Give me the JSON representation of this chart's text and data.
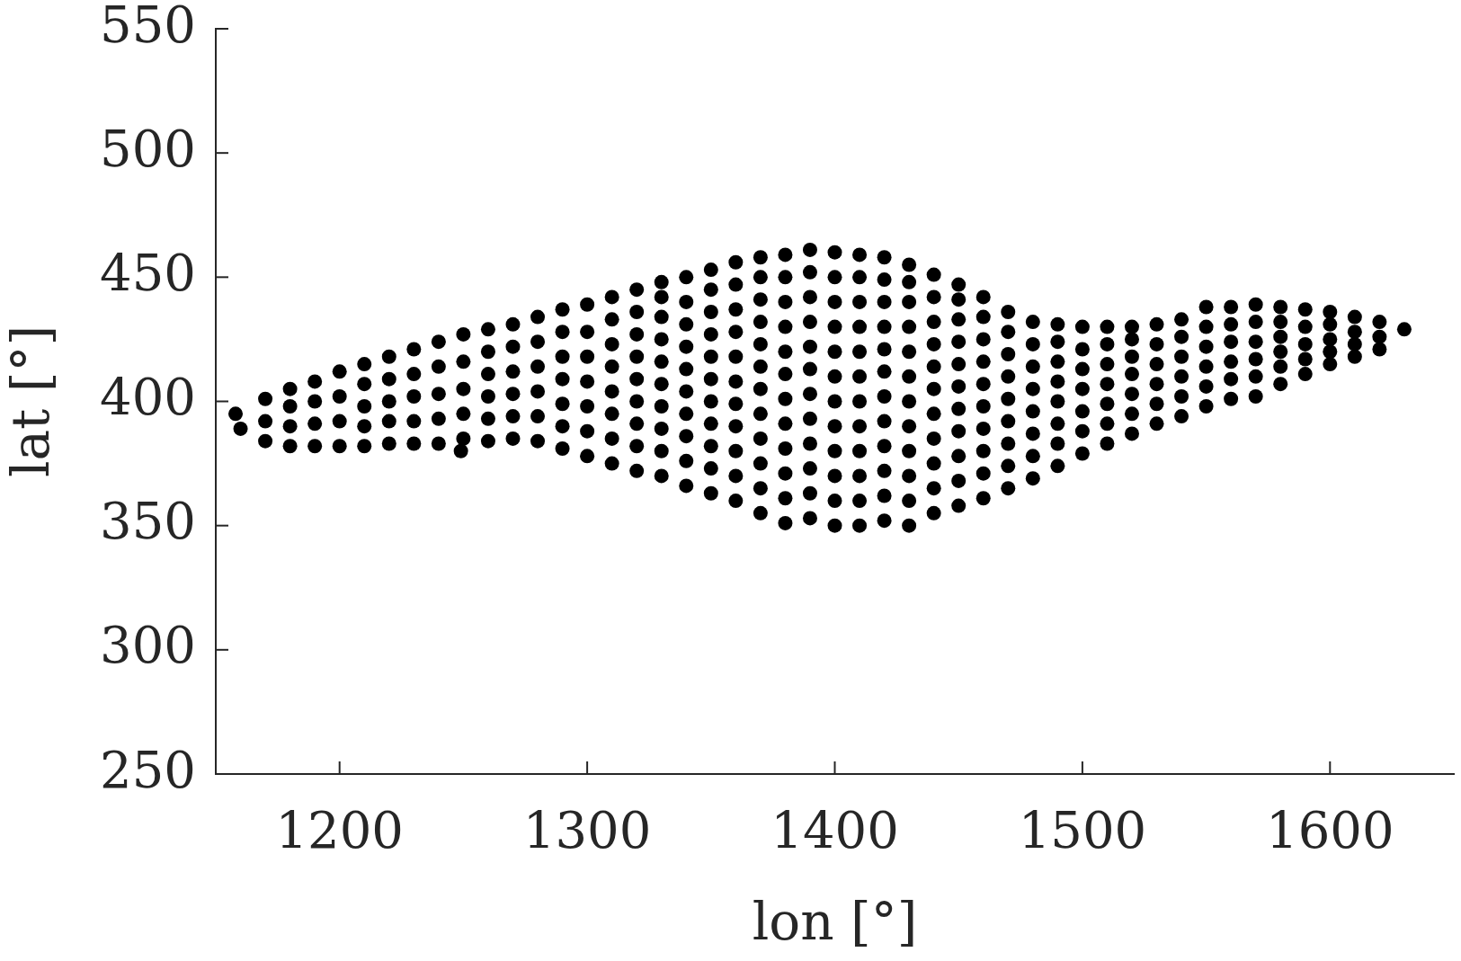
{
  "chart_data": {
    "type": "scatter",
    "xlabel": "lon [°]",
    "ylabel": "lat [°]",
    "xlim": [
      1150,
      1650
    ],
    "ylim": [
      250,
      550
    ],
    "xticks": [
      1200,
      1300,
      1400,
      1500,
      1600
    ],
    "yticks": [
      250,
      300,
      350,
      400,
      450,
      500,
      550
    ],
    "marker": "circle",
    "color": "#000000",
    "x": [
      1158,
      1160,
      1170,
      1170,
      1170,
      1180,
      1180,
      1180,
      1180,
      1190,
      1190,
      1190,
      1190,
      1200,
      1200,
      1200,
      1200,
      1210,
      1210,
      1210,
      1210,
      1210,
      1220,
      1220,
      1220,
      1220,
      1220,
      1230,
      1230,
      1230,
      1230,
      1230,
      1240,
      1240,
      1240,
      1240,
      1240,
      1249,
      1250,
      1250,
      1250,
      1250,
      1250,
      1260,
      1260,
      1260,
      1260,
      1260,
      1260,
      1270,
      1270,
      1270,
      1270,
      1270,
      1270,
      1280,
      1280,
      1280,
      1280,
      1280,
      1280,
      1290,
      1290,
      1290,
      1290,
      1290,
      1290,
      1290,
      1300,
      1300,
      1300,
      1300,
      1300,
      1300,
      1300,
      1310,
      1310,
      1310,
      1310,
      1310,
      1310,
      1310,
      1310,
      1320,
      1320,
      1320,
      1320,
      1320,
      1320,
      1320,
      1320,
      1320,
      1330,
      1330,
      1330,
      1330,
      1330,
      1330,
      1330,
      1330,
      1330,
      1330,
      1340,
      1340,
      1340,
      1340,
      1340,
      1340,
      1340,
      1340,
      1340,
      1340,
      1350,
      1350,
      1350,
      1350,
      1350,
      1350,
      1350,
      1350,
      1350,
      1350,
      1350,
      1360,
      1360,
      1360,
      1360,
      1360,
      1360,
      1360,
      1360,
      1360,
      1360,
      1360,
      1370,
      1370,
      1370,
      1370,
      1370,
      1370,
      1370,
      1370,
      1370,
      1370,
      1370,
      1370,
      1380,
      1380,
      1380,
      1380,
      1380,
      1380,
      1380,
      1380,
      1380,
      1380,
      1380,
      1380,
      1390,
      1390,
      1390,
      1390,
      1390,
      1390,
      1390,
      1390,
      1390,
      1390,
      1390,
      1390,
      1400,
      1400,
      1400,
      1400,
      1400,
      1400,
      1400,
      1400,
      1400,
      1400,
      1400,
      1400,
      1410,
      1410,
      1410,
      1410,
      1410,
      1410,
      1410,
      1410,
      1410,
      1410,
      1410,
      1410,
      1420,
      1420,
      1420,
      1420,
      1420,
      1420,
      1420,
      1420,
      1420,
      1420,
      1420,
      1420,
      1430,
      1430,
      1430,
      1430,
      1430,
      1430,
      1430,
      1430,
      1430,
      1430,
      1430,
      1430,
      1440,
      1440,
      1440,
      1440,
      1440,
      1440,
      1440,
      1440,
      1440,
      1440,
      1440,
      1450,
      1450,
      1450,
      1450,
      1450,
      1450,
      1450,
      1450,
      1450,
      1450,
      1450,
      1460,
      1460,
      1460,
      1460,
      1460,
      1460,
      1460,
      1460,
      1460,
      1460,
      1470,
      1470,
      1470,
      1470,
      1470,
      1470,
      1470,
      1470,
      1470,
      1480,
      1480,
      1480,
      1480,
      1480,
      1480,
      1480,
      1480,
      1490,
      1490,
      1490,
      1490,
      1490,
      1490,
      1490,
      1490,
      1500,
      1500,
      1500,
      1500,
      1500,
      1500,
      1500,
      1510,
      1510,
      1510,
      1510,
      1510,
      1510,
      1510,
      1520,
      1520,
      1520,
      1520,
      1520,
      1520,
      1520,
      1530,
      1530,
      1530,
      1530,
      1530,
      1530,
      1540,
      1540,
      1540,
      1540,
      1540,
      1540,
      1550,
      1550,
      1550,
      1550,
      1550,
      1550,
      1560,
      1560,
      1560,
      1560,
      1560,
      1560,
      1570,
      1570,
      1570,
      1570,
      1570,
      1570,
      1580,
      1580,
      1580,
      1580,
      1580,
      1580,
      1590,
      1590,
      1590,
      1590,
      1590,
      1600,
      1600,
      1600,
      1600,
      1600,
      1610,
      1610,
      1610,
      1610,
      1620,
      1620,
      1620,
      1630
    ],
    "values": [
      395,
      389,
      384,
      392,
      401,
      382,
      390,
      398,
      405,
      382,
      391,
      400,
      408,
      382,
      392,
      402,
      412,
      382,
      390,
      398,
      407,
      415,
      383,
      392,
      400,
      409,
      418,
      383,
      392,
      402,
      411,
      421,
      383,
      393,
      403,
      414,
      424,
      380,
      385,
      395,
      405,
      416,
      427,
      384,
      393,
      402,
      411,
      420,
      429,
      385,
      394,
      403,
      412,
      422,
      431,
      384,
      394,
      404,
      414,
      424,
      434,
      381,
      390,
      399,
      409,
      418,
      428,
      437,
      378,
      388,
      398,
      408,
      418,
      428,
      439,
      375,
      385,
      395,
      404,
      414,
      423,
      433,
      442,
      372,
      382,
      391,
      400,
      409,
      418,
      427,
      436,
      445,
      370,
      380,
      389,
      398,
      407,
      416,
      425,
      434,
      442,
      448,
      366,
      376,
      386,
      395,
      404,
      413,
      422,
      431,
      440,
      450,
      363,
      373,
      382,
      391,
      400,
      409,
      418,
      427,
      436,
      445,
      453,
      360,
      370,
      380,
      390,
      399,
      408,
      418,
      428,
      437,
      447,
      456,
      355,
      365,
      375,
      385,
      395,
      405,
      414,
      423,
      432,
      441,
      450,
      458,
      351,
      361,
      371,
      381,
      391,
      401,
      411,
      420,
      430,
      440,
      450,
      459,
      353,
      363,
      373,
      383,
      393,
      403,
      413,
      422,
      432,
      442,
      452,
      461,
      350,
      360,
      370,
      380,
      390,
      400,
      410,
      420,
      430,
      440,
      450,
      460,
      350,
      360,
      370,
      380,
      390,
      400,
      410,
      420,
      430,
      440,
      450,
      459,
      352,
      362,
      372,
      382,
      392,
      402,
      412,
      421,
      430,
      440,
      449,
      458,
      350,
      360,
      370,
      380,
      390,
      400,
      410,
      420,
      430,
      440,
      448,
      455,
      355,
      365,
      375,
      385,
      395,
      405,
      414,
      423,
      432,
      442,
      451,
      358,
      368,
      378,
      388,
      397,
      406,
      415,
      424,
      433,
      441,
      447,
      361,
      371,
      380,
      389,
      398,
      407,
      416,
      425,
      434,
      442,
      365,
      374,
      383,
      392,
      401,
      410,
      419,
      428,
      436,
      369,
      378,
      387,
      396,
      405,
      414,
      423,
      432,
      374,
      383,
      391,
      400,
      408,
      416,
      424,
      431,
      379,
      388,
      396,
      405,
      413,
      421,
      430,
      383,
      391,
      399,
      407,
      415,
      423,
      430,
      387,
      395,
      403,
      411,
      418,
      425,
      430,
      391,
      399,
      407,
      415,
      423,
      431,
      394,
      402,
      410,
      418,
      426,
      433,
      398,
      406,
      414,
      422,
      430,
      438,
      401,
      409,
      416,
      424,
      431,
      438,
      402,
      410,
      417,
      424,
      432,
      439,
      407,
      414,
      420,
      426,
      432,
      438,
      411,
      417,
      423,
      430,
      437,
      415,
      420,
      425,
      431,
      436,
      418,
      423,
      428,
      434,
      421,
      426,
      432,
      429
    ]
  }
}
